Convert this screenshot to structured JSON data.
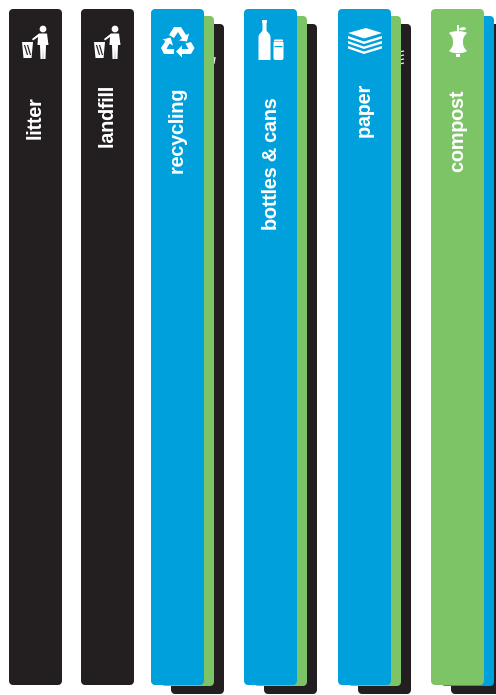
{
  "sign_strips": [
    {
      "label": "litter",
      "icon": "person-disposing-trash-icon",
      "color": "#231f20"
    },
    {
      "label": "landfill",
      "icon": "person-disposing-trash-icon",
      "color": "#231f20"
    },
    {
      "label": "recycling",
      "icon": "recycling-arrows-icon",
      "color": "#00a0dc",
      "backing_colors": [
        "#231f20",
        "#7dc466"
      ]
    },
    {
      "label": "bottles & cans",
      "icon": "bottle-and-can-icon",
      "color": "#00a0dc",
      "backing_colors": [
        "#231f20",
        "#7dc466"
      ]
    },
    {
      "label": "paper",
      "icon": "paper-stack-icon",
      "color": "#00a0dc",
      "backing_colors": [
        "#231f20",
        "#7dc466"
      ]
    },
    {
      "label": "compost",
      "icon": "apple-core-icon",
      "color": "#7dc466",
      "backing_colors": [
        "#231f20",
        "#00a0dc"
      ]
    }
  ]
}
